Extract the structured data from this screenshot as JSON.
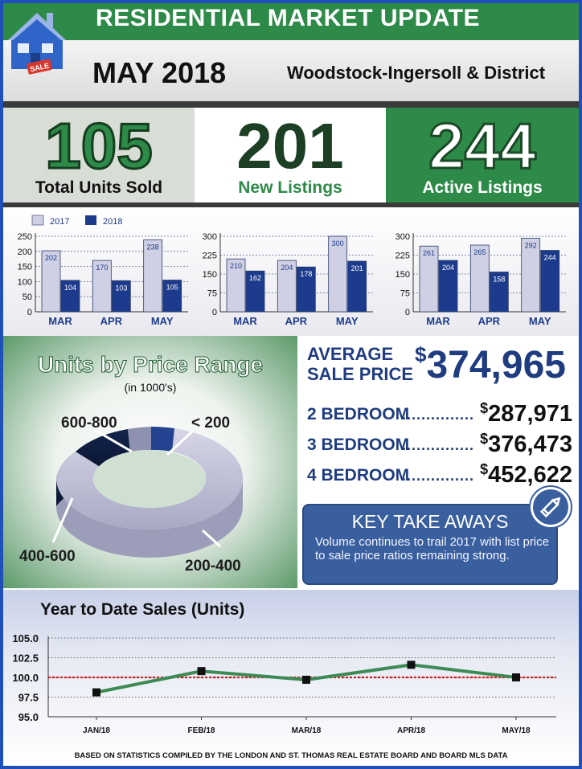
{
  "header": {
    "title": "RESIDENTIAL MARKET UPDATE",
    "month": "MAY 2018",
    "region": "Woodstock-Ingersoll & District",
    "logo_sign": "SALE"
  },
  "stats": [
    {
      "value": "105",
      "label": "Total Units Sold"
    },
    {
      "value": "201",
      "label": "New Listings"
    },
    {
      "value": "244",
      "label": "Active Listings"
    }
  ],
  "colors": {
    "green": "#2e8a48",
    "navy": "#1f3c80",
    "bar_2017": "#cfd0e3",
    "bar_2018": "#1d3b8c",
    "ytd_line": "#3e8a55",
    "ref_line": "#d42020"
  },
  "chart_data": [
    {
      "type": "bar",
      "legend": [
        "2017",
        "2018"
      ],
      "categories": [
        "MAR",
        "APR",
        "MAY"
      ],
      "series": [
        {
          "name": "2017",
          "values": [
            202,
            170,
            238
          ]
        },
        {
          "name": "2018",
          "values": [
            104,
            103,
            105
          ]
        }
      ],
      "yticks": [
        "250",
        "200",
        "150",
        "100",
        "50",
        "0"
      ],
      "ylim": [
        0,
        250
      ]
    },
    {
      "type": "bar",
      "categories": [
        "MAR",
        "APR",
        "MAY"
      ],
      "series": [
        {
          "name": "2017",
          "values": [
            210,
            204,
            300
          ]
        },
        {
          "name": "2018",
          "values": [
            162,
            178,
            201
          ]
        }
      ],
      "yticks": [
        "300",
        "225",
        "150",
        "75",
        "0"
      ],
      "ylim": [
        0,
        300
      ]
    },
    {
      "type": "bar",
      "categories": [
        "MAR",
        "APR",
        "MAY"
      ],
      "series": [
        {
          "name": "2017",
          "values": [
            261,
            265,
            292
          ]
        },
        {
          "name": "2018",
          "values": [
            204,
            158,
            244
          ]
        }
      ],
      "yticks": [
        "300",
        "225",
        "150",
        "75",
        "0"
      ],
      "ylim": [
        0,
        300
      ]
    },
    {
      "type": "pie",
      "title": "Units by Price Range",
      "subtitle": "(in 1000's)",
      "labels": [
        "< 200",
        "200-400",
        "400-600",
        "600-800"
      ],
      "values": [
        5,
        60,
        28,
        7
      ]
    },
    {
      "type": "line",
      "title": "Year to Date Sales (Units)",
      "x": [
        "JAN/18",
        "FEB/18",
        "MAR/18",
        "APR/18",
        "MAY/18"
      ],
      "values": [
        98.1,
        100.8,
        99.7,
        101.6,
        100.0
      ],
      "reference_line": 100.0,
      "yticks": [
        "105.0",
        "102.5",
        "100.0",
        "97.5",
        "95.0"
      ],
      "ylim": [
        95,
        105
      ]
    }
  ],
  "average": {
    "label_line1": "AVERAGE",
    "label_line2": "SALE PRICE",
    "currency": "$",
    "price": "374,965",
    "bedrooms": [
      {
        "name": "2 BEDROOM",
        "dots": "...............",
        "price": "287,971"
      },
      {
        "name": "3 BEDROOM",
        "dots": "...............",
        "price": "376,473"
      },
      {
        "name": "4 BEDROOM",
        "dots": "...............",
        "price": "452,622"
      }
    ]
  },
  "takeaways": {
    "title": "KEY TAKE AWAYS",
    "body": "Volume continues to trail 2017 with list price to sale price ratios remaining strong.",
    "icon": "pencil-icon"
  },
  "footer": {
    "note": "BASED ON STATISTICS COMPILED BY THE LONDON AND ST. THOMAS REAL ESTATE BOARD AND BOARD MLS DATA"
  }
}
